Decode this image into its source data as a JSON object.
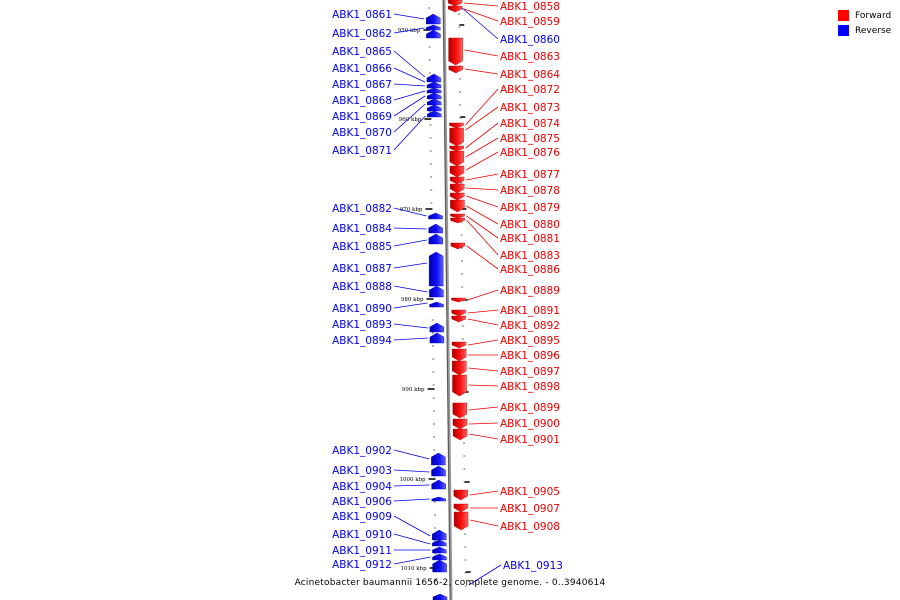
{
  "caption": "Acinetobacter baumannii 1656-2, complete genome. - 0..3940614",
  "legend": [
    {
      "label": "Forward",
      "color": "#ff0000"
    },
    {
      "label": "Reverse",
      "color": "#0000ff"
    }
  ],
  "colors": {
    "forward": "#ee0000",
    "reverse": "#0000ee",
    "axis": "#888888"
  },
  "kbp_marks": [
    "950 kbp",
    "960 kbp",
    "970 kbp",
    "980 kbp",
    "990 kbp",
    "1000 kbp",
    "1010 kbp"
  ],
  "reverse_genes": [
    "ABK1_0861",
    "ABK1_0862",
    "ABK1_0865",
    "ABK1_0866",
    "ABK1_0867",
    "ABK1_0868",
    "ABK1_0869",
    "ABK1_0870",
    "ABK1_0871",
    "ABK1_0882",
    "ABK1_0884",
    "ABK1_0885",
    "ABK1_0887",
    "ABK1_0888",
    "ABK1_0890",
    "ABK1_0893",
    "ABK1_0894",
    "ABK1_0902",
    "ABK1_0903",
    "ABK1_0904",
    "ABK1_0906",
    "ABK1_0909",
    "ABK1_0910",
    "ABK1_0911",
    "ABK1_0912",
    "ABK1_0860",
    "ABK1_0913"
  ],
  "forward_genes": [
    "ABK1_0858",
    "ABK1_0859",
    "ABK1_0863",
    "ABK1_0864",
    "ABK1_0872",
    "ABK1_0873",
    "ABK1_0874",
    "ABK1_0875",
    "ABK1_0876",
    "ABK1_0877",
    "ABK1_0878",
    "ABK1_0879",
    "ABK1_0880",
    "ABK1_0881",
    "ABK1_0883",
    "ABK1_0886",
    "ABK1_0889",
    "ABK1_0891",
    "ABK1_0892",
    "ABK1_0895",
    "ABK1_0896",
    "ABK1_0897",
    "ABK1_0898",
    "ABK1_0899",
    "ABK1_0900",
    "ABK1_0901",
    "ABK1_0905",
    "ABK1_0907",
    "ABK1_0908"
  ]
}
